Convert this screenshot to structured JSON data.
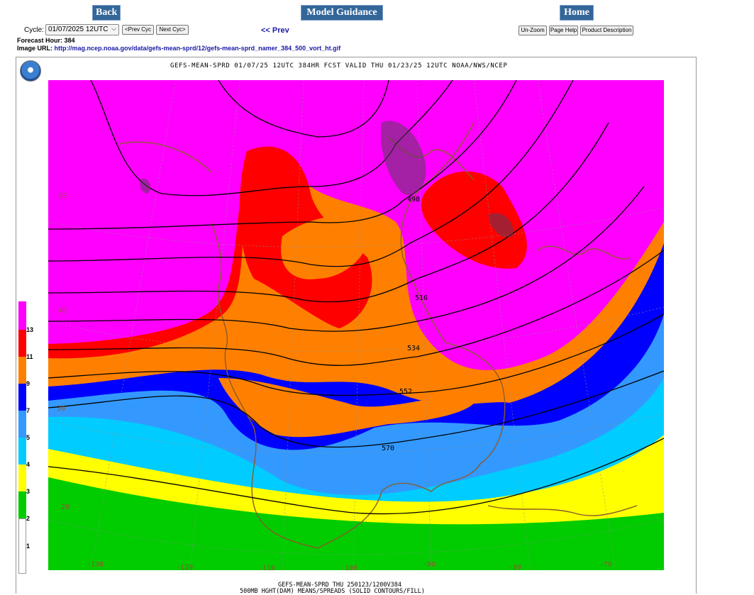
{
  "nav": {
    "back": "Back",
    "model_guidance": "Model Guidance",
    "home": "Home"
  },
  "cycle": {
    "label": "Cycle:",
    "selected": "01/07/2025 12UTC",
    "prev_cyc": "<Prev Cyc",
    "next_cyc": "Next Cyc>"
  },
  "prev_link": "<< Prev",
  "toolbar": {
    "unzoom": "Un-Zoom",
    "page_help": "Page Help",
    "product_description": "Product Description"
  },
  "forecast_hour": "Forecast Hour: 384",
  "image_url_label": "Image URL:",
  "image_url": "http://mag.ncep.noaa.gov/data/gefs-mean-sprd/12/gefs-mean-sprd_namer_384_500_vort_ht.gif",
  "map": {
    "title": "GEFS-MEAN-SPRD 01/07/25 12UTC 384HR FCST VALID THU 01/23/25 12UTC NOAA/NWS/NCEP",
    "footer_line1": "GEFS-MEAN-SPRD THU 250123/1200V384",
    "footer_line2": "500MB HGHT(DAM) MEANS/SPREADS (SOLID CONTOURS/FILL)",
    "contour_labels": [
      "498",
      "516",
      "534",
      "552",
      "570"
    ],
    "lat_labels": [
      "50",
      "40",
      "30",
      "20"
    ],
    "lon_labels": [
      "-130",
      "-120",
      "-110",
      "-100",
      "-90",
      "-80",
      "-70"
    ],
    "colorbar": {
      "labels": [
        "13",
        "11",
        "9",
        "7",
        "5",
        "4",
        "3",
        "2",
        "1"
      ],
      "colors": [
        "#ff00ff",
        "#ff0000",
        "#ff8000",
        "#0000ff",
        "#3399ff",
        "#00ccff",
        "#ffff00",
        "#00cc00",
        "#ffffff"
      ]
    }
  }
}
